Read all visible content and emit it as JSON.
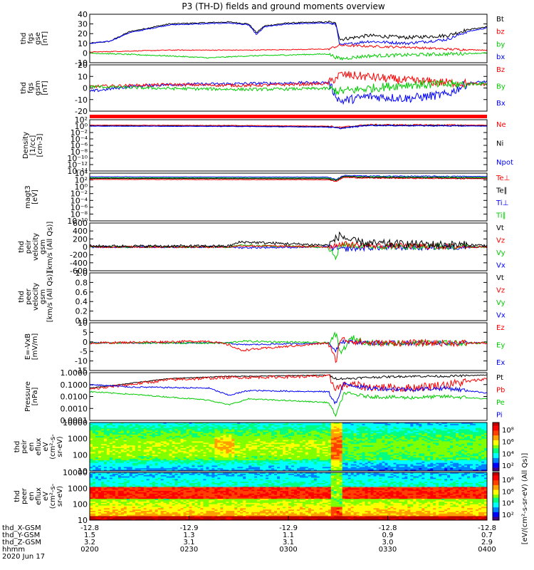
{
  "title": "P3 (TH-D) fields and ground moments overview",
  "colors": {
    "black": "#000000",
    "red": "#ff0000",
    "green": "#00cc00",
    "blue": "#0000ff"
  },
  "chart_data": [
    {
      "type": "line",
      "id": "fgs_gse",
      "ylabel": [
        "thd",
        "fgs",
        "gse",
        "[nT]"
      ],
      "ylim": [
        -10,
        40
      ],
      "yticks": [
        "40",
        "30",
        "20",
        "10",
        "0",
        "-10"
      ],
      "legend": [
        {
          "name": "Bt",
          "color": "#000000"
        },
        {
          "name": "bz",
          "color": "#ff0000"
        },
        {
          "name": "by",
          "color": "#00cc00"
        },
        {
          "name": "bx",
          "color": "#0000ff"
        }
      ],
      "series": [
        {
          "name": "Bt",
          "color": "#000000",
          "noise": 0.6,
          "x": [
            0,
            0.05,
            0.1,
            0.2,
            0.35,
            0.4,
            0.42,
            0.44,
            0.5,
            0.6,
            0.62,
            0.63,
            0.7,
            0.8,
            0.9,
            0.95,
            1
          ],
          "y": [
            10,
            12,
            22,
            30,
            32,
            30,
            21,
            28,
            31,
            32,
            30,
            14,
            18,
            16,
            18,
            24,
            27
          ]
        },
        {
          "name": "bx",
          "color": "#0000ff",
          "noise": 0.5,
          "x": [
            0,
            0.05,
            0.1,
            0.2,
            0.35,
            0.4,
            0.42,
            0.44,
            0.5,
            0.6,
            0.62,
            0.63,
            0.7,
            0.8,
            0.9,
            0.95,
            1
          ],
          "y": [
            10,
            12,
            21,
            29,
            31,
            29,
            19,
            27,
            30,
            31,
            29,
            8,
            12,
            10,
            14,
            22,
            26
          ]
        },
        {
          "name": "bz",
          "color": "#ff0000",
          "noise": 0.4,
          "x": [
            0,
            0.2,
            0.4,
            0.6,
            0.63,
            0.7,
            0.8,
            0.9,
            1
          ],
          "y": [
            1,
            3,
            3,
            4,
            8,
            7,
            6,
            4,
            3
          ]
        },
        {
          "name": "by",
          "color": "#00cc00",
          "noise": 0.6,
          "x": [
            0,
            0.2,
            0.3,
            0.4,
            0.6,
            0.63,
            0.7,
            0.8,
            0.9,
            1
          ],
          "y": [
            0,
            -3,
            -5,
            -3,
            -1,
            -6,
            -3,
            -2,
            -1,
            0
          ]
        }
      ]
    },
    {
      "type": "line",
      "id": "fgs_gsm",
      "ylabel": [
        "thd",
        "fgs",
        "gsm",
        "[nT]"
      ],
      "ylim": [
        -25,
        22
      ],
      "yticks": [
        "20",
        "10",
        "0",
        "-10",
        "-20"
      ],
      "legend": [
        {
          "name": "Bz",
          "color": "#ff0000"
        },
        {
          "name": "By",
          "color": "#00cc00"
        },
        {
          "name": "Bx",
          "color": "#0000ff"
        }
      ],
      "series": [
        {
          "name": "Bx",
          "color": "#0000ff",
          "noise": 1.5,
          "x": [
            0,
            0.1,
            0.2,
            0.4,
            0.6,
            0.63,
            0.7,
            0.8,
            0.9,
            0.95,
            1
          ],
          "y": [
            -5,
            0,
            2,
            3,
            4,
            -15,
            -10,
            -12,
            -8,
            3,
            5
          ]
        },
        {
          "name": "Bz",
          "color": "#ff0000",
          "noise": 1.5,
          "x": [
            0,
            0.2,
            0.4,
            0.6,
            0.63,
            0.7,
            0.8,
            0.9,
            1
          ],
          "y": [
            0,
            2,
            1,
            3,
            12,
            10,
            6,
            4,
            2
          ]
        },
        {
          "name": "By",
          "color": "#00cc00",
          "noise": 1.5,
          "x": [
            0,
            0.2,
            0.4,
            0.6,
            0.63,
            0.7,
            0.8,
            0.9,
            1
          ],
          "y": [
            0,
            -2,
            -3,
            -2,
            -5,
            -2,
            2,
            2,
            3
          ]
        }
      ]
    },
    {
      "type": "line",
      "id": "density",
      "ylabel": [
        "Density",
        "[1/cc]",
        "[cm-3]"
      ],
      "scale": "log",
      "ylim": [
        -14,
        2
      ],
      "yticks": [
        "10²",
        "10⁰",
        "10⁻²",
        "10⁻⁴",
        "10⁻⁶",
        "10⁻⁸",
        "10⁻¹⁰",
        "10⁻¹²",
        "10⁻¹⁴"
      ],
      "legend": [
        {
          "name": "Ne",
          "color": "#ff0000"
        },
        {
          "name": "Ni",
          "color": "#000000"
        },
        {
          "name": "Npot",
          "color": "#0000ff"
        }
      ],
      "series": [
        {
          "name": "Ne",
          "color": "#ff0000",
          "noise": 0.08,
          "x": [
            0,
            0.35,
            0.6,
            0.63,
            0.7,
            1
          ],
          "y": [
            0.3,
            0.2,
            0,
            -0.4,
            0.4,
            0.3
          ]
        },
        {
          "name": "Ni",
          "color": "#000000",
          "noise": 0.06,
          "x": [
            0,
            0.35,
            0.6,
            0.63,
            0.7,
            1
          ],
          "y": [
            0.1,
            0,
            -0.2,
            -0.6,
            0.3,
            0.1
          ]
        },
        {
          "name": "Npot",
          "color": "#0000ff",
          "noise": 0.06,
          "x": [
            0,
            0.35,
            0.6,
            0.63,
            0.7,
            1
          ],
          "y": [
            0,
            -0.1,
            -0.3,
            -0.7,
            0.2,
            0
          ]
        }
      ]
    },
    {
      "type": "line",
      "id": "temperature",
      "ylabel": [
        "magt3",
        "[eV]"
      ],
      "scale": "log",
      "ylim": [
        -10,
        4.5
      ],
      "yticks": [
        "10⁴",
        "10²",
        "10⁰",
        "10⁻²",
        "10⁻⁴",
        "10⁻⁶",
        "10⁻⁸",
        "10⁻¹⁰"
      ],
      "legend": [
        {
          "name": "Te⊥",
          "color": "#ff0000"
        },
        {
          "name": "Te∥",
          "color": "#000000"
        },
        {
          "name": "Ti⊥",
          "color": "#0000ff"
        },
        {
          "name": "Ti∥",
          "color": "#00cc00"
        }
      ],
      "series": [
        {
          "name": "Ti⊥",
          "color": "#0000ff",
          "noise": 0.05,
          "x": [
            0,
            0.6,
            0.62,
            0.64,
            0.7,
            1
          ],
          "y": [
            3.4,
            3.3,
            2.6,
            3.8,
            3.6,
            3.5
          ]
        },
        {
          "name": "Ti∥",
          "color": "#00cc00",
          "noise": 0.05,
          "x": [
            0,
            0.6,
            0.62,
            0.64,
            0.7,
            1
          ],
          "y": [
            3.1,
            3.0,
            2.4,
            3.5,
            3.4,
            3.2
          ]
        },
        {
          "name": "Te⊥",
          "color": "#ff0000",
          "noise": 0.05,
          "x": [
            0,
            0.6,
            0.62,
            0.64,
            0.7,
            1
          ],
          "y": [
            2.6,
            2.5,
            2.0,
            3.2,
            3.0,
            2.8
          ]
        },
        {
          "name": "Te∥",
          "color": "#000000",
          "noise": 0.05,
          "x": [
            0,
            0.6,
            0.62,
            0.64,
            0.7,
            1
          ],
          "y": [
            2.9,
            2.8,
            2.2,
            3.5,
            3.2,
            3.0
          ]
        }
      ]
    },
    {
      "type": "line",
      "id": "peir_velocity",
      "ylabel": [
        "thd",
        "peir",
        "velocity",
        "gsm",
        "[km/s (All Qs)]"
      ],
      "ylim": [
        -620,
        620
      ],
      "yticks": [
        "600",
        "400",
        "200",
        "0",
        "-200",
        "-400",
        "-600"
      ],
      "legend": [
        {
          "name": "Vt",
          "color": "#000000"
        },
        {
          "name": "Vz",
          "color": "#ff0000"
        },
        {
          "name": "Vy",
          "color": "#00cc00"
        },
        {
          "name": "Vx",
          "color": "#0000ff"
        }
      ],
      "series": [
        {
          "name": "Vx",
          "color": "#0000ff",
          "noise": 25,
          "x": [
            0,
            0.35,
            0.38,
            0.6,
            0.63,
            0.7,
            1
          ],
          "y": [
            0,
            0,
            -20,
            0,
            -60,
            -20,
            0
          ]
        },
        {
          "name": "Vy",
          "color": "#00cc00",
          "noise": 25,
          "x": [
            0,
            0.35,
            0.38,
            0.6,
            0.62,
            0.63,
            0.7,
            1
          ],
          "y": [
            0,
            0,
            40,
            0,
            -280,
            60,
            10,
            0
          ]
        },
        {
          "name": "Vz",
          "color": "#ff0000",
          "noise": 25,
          "x": [
            0,
            0.35,
            0.38,
            0.6,
            0.63,
            0.7,
            1
          ],
          "y": [
            0,
            0,
            30,
            0,
            80,
            30,
            0
          ]
        },
        {
          "name": "Vt",
          "color": "#000000",
          "noise": 35,
          "x": [
            0,
            0.35,
            0.38,
            0.6,
            0.63,
            0.66,
            0.7,
            1
          ],
          "y": [
            20,
            20,
            130,
            40,
            300,
            150,
            90,
            40
          ]
        }
      ]
    },
    {
      "type": "line",
      "id": "peer_velocity",
      "ylabel": [
        "thd",
        "peer",
        "velocity",
        "gsm",
        "[km/s (All Qs)]"
      ],
      "ylim": [
        0,
        1
      ],
      "yticks": [
        "1.0",
        "0.8",
        "0.6",
        "0.4",
        "0.2",
        "0.0"
      ],
      "legend": [
        {
          "name": "Vt",
          "color": "#000000"
        },
        {
          "name": "Vz",
          "color": "#ff0000"
        },
        {
          "name": "Vy",
          "color": "#00cc00"
        },
        {
          "name": "Vx",
          "color": "#0000ff"
        }
      ],
      "series": []
    },
    {
      "type": "line",
      "id": "efield",
      "ylabel": [
        "E=-VxB",
        "[mV/m]"
      ],
      "ylim": [
        -15,
        11
      ],
      "yticks": [
        "10",
        "5",
        "0",
        "-5",
        "-10",
        "-15"
      ],
      "legend": [
        {
          "name": "Ez",
          "color": "#ff0000"
        },
        {
          "name": "Ey",
          "color": "#00cc00"
        },
        {
          "name": "Ex",
          "color": "#0000ff"
        }
      ],
      "series": [
        {
          "name": "Ex",
          "color": "#0000ff",
          "noise": 0.4,
          "x": [
            0,
            0.35,
            0.38,
            0.6,
            0.62,
            0.63,
            0.7,
            1
          ],
          "y": [
            0,
            0,
            -1,
            0,
            -4,
            1,
            0,
            0
          ]
        },
        {
          "name": "Ey",
          "color": "#00cc00",
          "noise": 0.5,
          "x": [
            0,
            0.35,
            0.38,
            0.6,
            0.62,
            0.63,
            0.66,
            0.7,
            1
          ],
          "y": [
            0,
            0,
            1,
            0,
            5,
            -6,
            3,
            0,
            0
          ]
        },
        {
          "name": "Ez",
          "color": "#ff0000",
          "noise": 0.6,
          "x": [
            0,
            0.3,
            0.35,
            0.38,
            0.6,
            0.62,
            0.63,
            0.7,
            1
          ],
          "y": [
            0,
            1,
            -1,
            -4,
            0,
            -10,
            2,
            0,
            0
          ]
        }
      ]
    },
    {
      "type": "line",
      "id": "pressure",
      "ylabel": [
        "Pressure",
        "[nPa]"
      ],
      "scale": "log",
      "ylim": [
        -4,
        0
      ],
      "yticks": [
        "1.0000",
        "0.1000",
        "0.0100",
        "0.0010",
        "0.0001"
      ],
      "legend": [
        {
          "name": "Pt",
          "color": "#000000"
        },
        {
          "name": "Pb",
          "color": "#ff0000"
        },
        {
          "name": "Pe",
          "color": "#00cc00"
        },
        {
          "name": "Pi",
          "color": "#0000ff"
        }
      ],
      "series": [
        {
          "name": "Pt",
          "color": "#000000",
          "noise": 0.03,
          "x": [
            0,
            0.1,
            0.2,
            0.35,
            0.4,
            0.6,
            0.62,
            0.65,
            0.7,
            0.8,
            0.9,
            1
          ],
          "y": [
            -1.3,
            -0.9,
            -0.5,
            -0.3,
            -0.3,
            -0.2,
            -0.5,
            -0.5,
            -0.4,
            -0.3,
            -0.3,
            -0.2
          ]
        },
        {
          "name": "Pb",
          "color": "#ff0000",
          "noise": 0.12,
          "x": [
            0,
            0.1,
            0.2,
            0.35,
            0.4,
            0.6,
            0.62,
            0.65,
            0.7,
            0.8,
            0.9,
            1
          ],
          "y": [
            -1.4,
            -1,
            -0.6,
            -0.4,
            -0.4,
            -0.3,
            -1.3,
            -1,
            -1.2,
            -1.3,
            -1,
            -0.5
          ]
        },
        {
          "name": "Pi",
          "color": "#0000ff",
          "noise": 0.06,
          "x": [
            0,
            0.1,
            0.3,
            0.35,
            0.4,
            0.6,
            0.62,
            0.64,
            0.7,
            0.8,
            0.9,
            1
          ],
          "y": [
            -1,
            -1.2,
            -1.3,
            -1.9,
            -1.5,
            -1.6,
            -2.6,
            -0.9,
            -1.3,
            -1.4,
            -1.3,
            -1.7
          ]
        },
        {
          "name": "Pe",
          "color": "#00cc00",
          "noise": 0.05,
          "x": [
            0,
            0.1,
            0.3,
            0.35,
            0.4,
            0.6,
            0.62,
            0.64,
            0.7,
            0.8,
            0.9,
            1
          ],
          "y": [
            -1.6,
            -1.8,
            -2.3,
            -2.7,
            -2.2,
            -2.5,
            -3.6,
            -1.7,
            -2.0,
            -2.1,
            -2.0,
            -2.2
          ]
        }
      ]
    },
    {
      "type": "heatmap",
      "id": "peir_spec",
      "ylabel": [
        "thd",
        "peir",
        "en",
        "eflux",
        "eV",
        "(cm²-s-",
        "sr-eV)"
      ],
      "yticks": [
        "10000",
        "1000",
        "100",
        "10"
      ],
      "profile": "ion",
      "colorbar": {
        "labels": [
          "10⁸",
          "10⁶",
          "10⁴",
          "10²"
        ],
        "unit": "[eV/(cm²-s-sr-eV)]"
      }
    },
    {
      "type": "heatmap",
      "id": "peer_spec",
      "ylabel": [
        "thd",
        "peer",
        "en",
        "eflux",
        "eV",
        "(cm²-s-",
        "sr-eV)"
      ],
      "yticks": [
        "10000",
        "1000",
        "100",
        "10"
      ],
      "profile": "electron",
      "colorbar": {
        "labels": [
          "10⁸",
          "10⁶",
          "10⁴",
          "10²"
        ],
        "unit": "[eV/(cm²-s-sr-eV)]"
      }
    }
  ],
  "colorbar_unit_label": "[eV/(cm²-s-sr-eV) (All Qs)]",
  "xaxis": {
    "rows": [
      {
        "label": "thd_X-GSM",
        "values": [
          "-12.8",
          "-12.9",
          "-12.9",
          "-12.8",
          "-12.8"
        ]
      },
      {
        "label": "thd_Y-GSM",
        "values": [
          "1.5",
          "1.3",
          "1.1",
          "0.9",
          "0.7"
        ]
      },
      {
        "label": "thd_Z-GSM",
        "values": [
          "3.2",
          "3.1",
          "3.1",
          "3.0",
          "2.9"
        ]
      },
      {
        "label": "hhmm",
        "values": [
          "0200",
          "0230",
          "0300",
          "0330",
          "0400"
        ]
      }
    ],
    "date": "2020 Jun 17"
  }
}
